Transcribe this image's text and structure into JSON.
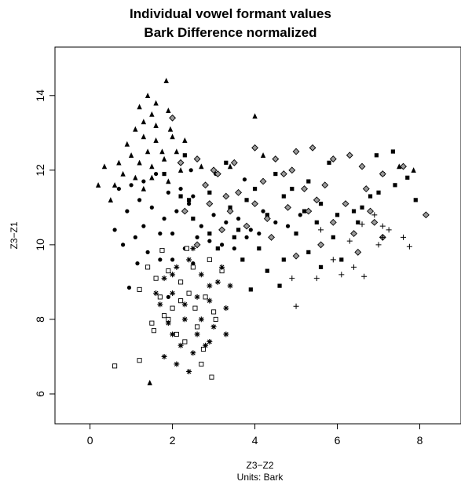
{
  "chart_data": {
    "type": "scatter",
    "title": "Individual vowel formant values",
    "subtitle": "Bark Difference normalized",
    "xlabel": "Z3−Z2",
    "xlabel_sub": "Units: Bark",
    "ylabel": "Z3−Z1",
    "xlim": [
      -0.85,
      9.0
    ],
    "ylim": [
      5.2,
      15.3
    ],
    "xticks": [
      0,
      2,
      4,
      6,
      8
    ],
    "yticks": [
      6,
      8,
      10,
      12,
      14
    ],
    "grid": false,
    "legend": "none",
    "series": [
      {
        "marker": "triangle",
        "points": [
          [
            1.4,
            14.0
          ],
          [
            1.6,
            13.8
          ],
          [
            1.85,
            14.4
          ],
          [
            1.2,
            13.7
          ],
          [
            1.5,
            13.5
          ],
          [
            1.3,
            13.3
          ],
          [
            1.9,
            13.6
          ],
          [
            1.1,
            13.1
          ],
          [
            1.6,
            13.2
          ],
          [
            1.95,
            13.1
          ],
          [
            0.9,
            12.7
          ],
          [
            1.3,
            12.9
          ],
          [
            1.6,
            12.8
          ],
          [
            2.0,
            12.9
          ],
          [
            2.3,
            12.8
          ],
          [
            1.0,
            12.4
          ],
          [
            1.4,
            12.5
          ],
          [
            1.75,
            12.5
          ],
          [
            2.1,
            12.5
          ],
          [
            0.7,
            12.2
          ],
          [
            1.2,
            12.2
          ],
          [
            1.5,
            12.1
          ],
          [
            1.8,
            12.3
          ],
          [
            0.35,
            12.1
          ],
          [
            0.8,
            11.9
          ],
          [
            1.1,
            11.8
          ],
          [
            1.5,
            11.8
          ],
          [
            1.9,
            11.7
          ],
          [
            0.6,
            11.6
          ],
          [
            0.2,
            11.6
          ],
          [
            1.3,
            11.5
          ],
          [
            2.2,
            12.0
          ],
          [
            0.5,
            11.2
          ],
          [
            2.7,
            12.1
          ],
          [
            4.0,
            13.45
          ],
          [
            4.2,
            12.4
          ],
          [
            7.85,
            12.0
          ],
          [
            7.5,
            12.1
          ],
          [
            3.4,
            12.1
          ],
          [
            1.45,
            6.3
          ]
        ]
      },
      {
        "marker": "circle",
        "points": [
          [
            0.6,
            10.4
          ],
          [
            0.9,
            10.9
          ],
          [
            1.2,
            11.2
          ],
          [
            1.5,
            11.0
          ],
          [
            1.8,
            10.7
          ],
          [
            2.1,
            10.9
          ],
          [
            2.4,
            11.1
          ],
          [
            2.7,
            10.5
          ],
          [
            3.0,
            10.8
          ],
          [
            3.3,
            10.6
          ],
          [
            3.6,
            10.7
          ],
          [
            3.9,
            10.4
          ],
          [
            4.2,
            10.9
          ],
          [
            4.5,
            10.6
          ],
          [
            4.8,
            10.5
          ],
          [
            5.1,
            10.8
          ],
          [
            0.8,
            10.0
          ],
          [
            1.1,
            10.2
          ],
          [
            1.4,
            9.8
          ],
          [
            1.7,
            9.6
          ],
          [
            2.0,
            10.3
          ],
          [
            2.3,
            9.9
          ],
          [
            2.6,
            10.2
          ],
          [
            2.9,
            10.1
          ],
          [
            3.2,
            10.0
          ],
          [
            3.5,
            9.9
          ],
          [
            3.8,
            10.2
          ],
          [
            4.1,
            10.3
          ],
          [
            1.3,
            11.7
          ],
          [
            1.6,
            11.9
          ],
          [
            1.9,
            11.4
          ],
          [
            2.2,
            11.5
          ],
          [
            2.5,
            11.3
          ],
          [
            2.8,
            11.6
          ],
          [
            0.7,
            11.5
          ],
          [
            1.0,
            11.6
          ],
          [
            1.3,
            10.5
          ],
          [
            1.7,
            10.3
          ],
          [
            2.0,
            9.6
          ],
          [
            2.5,
            9.5
          ],
          [
            1.9,
            8.6
          ],
          [
            1.15,
            9.5
          ],
          [
            0.95,
            8.85
          ],
          [
            3.05,
            11.9
          ],
          [
            2.45,
            12.0
          ],
          [
            3.75,
            11.75
          ]
        ]
      },
      {
        "marker": "square-filled",
        "points": [
          [
            1.8,
            11.9
          ],
          [
            2.4,
            11.2
          ],
          [
            2.9,
            11.4
          ],
          [
            3.4,
            11.0
          ],
          [
            3.8,
            11.2
          ],
          [
            4.3,
            10.8
          ],
          [
            4.7,
            11.3
          ],
          [
            5.2,
            10.9
          ],
          [
            5.6,
            11.1
          ],
          [
            6.0,
            10.8
          ],
          [
            6.4,
            10.9
          ],
          [
            6.8,
            11.3
          ],
          [
            7.1,
            11.9
          ],
          [
            7.4,
            11.6
          ],
          [
            7.7,
            11.8
          ],
          [
            7.35,
            12.5
          ],
          [
            6.95,
            12.4
          ],
          [
            5.8,
            12.2
          ],
          [
            5.3,
            11.7
          ],
          [
            4.9,
            11.5
          ],
          [
            4.5,
            11.9
          ],
          [
            3.3,
            12.2
          ],
          [
            2.3,
            12.4
          ],
          [
            2.9,
            10.3
          ],
          [
            3.5,
            10.2
          ],
          [
            4.1,
            9.9
          ],
          [
            4.7,
            9.6
          ],
          [
            5.3,
            9.8
          ],
          [
            5.9,
            10.2
          ],
          [
            6.5,
            10.6
          ],
          [
            6.1,
            9.6
          ],
          [
            5.6,
            9.4
          ],
          [
            4.3,
            9.3
          ],
          [
            3.9,
            8.8
          ],
          [
            4.6,
            8.9
          ],
          [
            3.7,
            9.6
          ],
          [
            3.1,
            9.9
          ],
          [
            2.5,
            10.7
          ],
          [
            2.2,
            11.3
          ],
          [
            6.6,
            11.0
          ],
          [
            7.9,
            11.2
          ],
          [
            7.0,
            11.4
          ],
          [
            5.0,
            10.3
          ],
          [
            5.5,
            10.6
          ],
          [
            4.0,
            11.5
          ],
          [
            3.6,
            10.4
          ]
        ]
      },
      {
        "marker": "diamond",
        "points": [
          [
            2.0,
            13.4
          ],
          [
            2.6,
            12.3
          ],
          [
            2.8,
            11.6
          ],
          [
            3.1,
            11.9
          ],
          [
            3.5,
            12.2
          ],
          [
            4.0,
            12.6
          ],
          [
            4.5,
            12.3
          ],
          [
            5.0,
            12.5
          ],
          [
            5.4,
            12.6
          ],
          [
            5.9,
            12.3
          ],
          [
            6.3,
            12.4
          ],
          [
            6.6,
            12.1
          ],
          [
            7.1,
            11.9
          ],
          [
            7.6,
            12.1
          ],
          [
            8.15,
            10.8
          ],
          [
            7.1,
            10.2
          ],
          [
            6.4,
            10.3
          ],
          [
            6.8,
            10.9
          ],
          [
            5.9,
            10.6
          ],
          [
            5.3,
            10.9
          ],
          [
            4.8,
            11.0
          ],
          [
            4.3,
            10.7
          ],
          [
            3.8,
            10.5
          ],
          [
            3.4,
            10.9
          ],
          [
            2.9,
            11.1
          ],
          [
            2.3,
            10.9
          ],
          [
            3.0,
            12.0
          ],
          [
            3.6,
            11.4
          ],
          [
            4.2,
            11.7
          ],
          [
            4.7,
            11.9
          ],
          [
            5.2,
            11.5
          ],
          [
            5.7,
            11.6
          ],
          [
            6.2,
            11.1
          ],
          [
            6.7,
            11.5
          ],
          [
            2.6,
            10.0
          ],
          [
            3.2,
            10.4
          ],
          [
            4.4,
            10.2
          ],
          [
            5.0,
            9.7
          ],
          [
            5.6,
            10.0
          ],
          [
            6.5,
            9.8
          ],
          [
            2.2,
            12.2
          ],
          [
            4.0,
            11.1
          ],
          [
            4.9,
            12.0
          ],
          [
            3.3,
            11.3
          ],
          [
            6.9,
            10.6
          ],
          [
            5.5,
            11.2
          ]
        ]
      },
      {
        "marker": "square-open",
        "points": [
          [
            0.6,
            6.75
          ],
          [
            1.2,
            6.9
          ],
          [
            2.7,
            6.8
          ],
          [
            2.95,
            6.45
          ],
          [
            2.3,
            7.4
          ],
          [
            2.6,
            7.8
          ],
          [
            1.5,
            7.9
          ],
          [
            1.8,
            8.1
          ],
          [
            2.0,
            8.3
          ],
          [
            1.7,
            8.6
          ],
          [
            2.4,
            8.7
          ],
          [
            2.8,
            8.6
          ],
          [
            3.0,
            8.2
          ],
          [
            2.2,
            9.0
          ],
          [
            1.6,
            9.1
          ],
          [
            1.9,
            9.3
          ],
          [
            2.5,
            9.4
          ],
          [
            1.2,
            8.8
          ],
          [
            1.9,
            8.0
          ],
          [
            2.1,
            7.6
          ],
          [
            2.75,
            7.2
          ],
          [
            3.2,
            9.3
          ],
          [
            2.9,
            9.6
          ],
          [
            2.35,
            9.9
          ],
          [
            1.75,
            9.85
          ],
          [
            1.4,
            9.4
          ],
          [
            2.55,
            8.3
          ],
          [
            3.05,
            8.0
          ],
          [
            2.2,
            8.5
          ],
          [
            1.55,
            7.7
          ]
        ]
      },
      {
        "marker": "asterisk",
        "points": [
          [
            1.8,
            7.0
          ],
          [
            2.1,
            6.8
          ],
          [
            2.4,
            6.6
          ],
          [
            2.8,
            7.3
          ],
          [
            3.0,
            7.8
          ],
          [
            3.3,
            8.3
          ],
          [
            3.4,
            8.9
          ],
          [
            2.9,
            8.9
          ],
          [
            2.6,
            8.6
          ],
          [
            2.3,
            8.4
          ],
          [
            2.0,
            8.7
          ],
          [
            1.7,
            8.4
          ],
          [
            1.8,
            9.1
          ],
          [
            2.1,
            9.4
          ],
          [
            2.4,
            9.6
          ],
          [
            2.7,
            9.2
          ],
          [
            3.1,
            9.0
          ],
          [
            3.3,
            7.6
          ],
          [
            2.5,
            7.1
          ],
          [
            2.2,
            7.3
          ],
          [
            2.0,
            7.6
          ],
          [
            1.9,
            7.9
          ],
          [
            2.7,
            8.0
          ],
          [
            2.9,
            8.5
          ],
          [
            3.2,
            9.4
          ],
          [
            2.5,
            9.9
          ],
          [
            2.0,
            9.2
          ],
          [
            2.6,
            7.6
          ],
          [
            1.6,
            8.7
          ],
          [
            2.9,
            7.4
          ],
          [
            2.3,
            8.0
          ]
        ]
      },
      {
        "marker": "plus",
        "points": [
          [
            5.0,
            8.35
          ],
          [
            4.9,
            9.1
          ],
          [
            5.5,
            9.1
          ],
          [
            6.1,
            9.2
          ],
          [
            6.4,
            9.4
          ],
          [
            6.65,
            9.15
          ],
          [
            5.9,
            9.6
          ],
          [
            7.1,
            10.2
          ],
          [
            7.25,
            10.4
          ],
          [
            7.6,
            10.2
          ],
          [
            7.75,
            9.95
          ],
          [
            7.1,
            10.5
          ],
          [
            6.9,
            10.8
          ],
          [
            6.6,
            10.55
          ],
          [
            6.3,
            10.1
          ],
          [
            7.0,
            10.0
          ],
          [
            5.6,
            10.4
          ]
        ]
      }
    ]
  }
}
